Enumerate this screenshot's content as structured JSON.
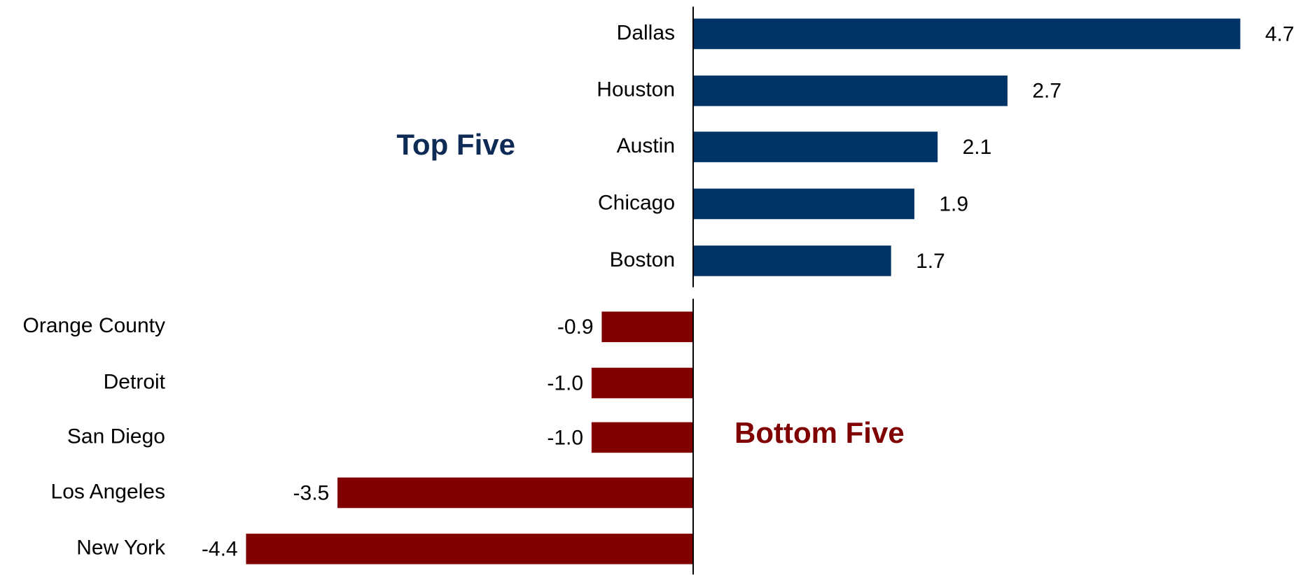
{
  "chart_data": [
    {
      "type": "bar",
      "orientation": "horizontal",
      "title": "Top Five",
      "categories": [
        "Dallas",
        "Houston",
        "Austin",
        "Chicago",
        "Boston"
      ],
      "values": [
        4.7,
        2.7,
        2.1,
        1.9,
        1.7
      ],
      "value_labels": [
        "4.7",
        "2.7",
        "2.1",
        "1.9",
        "1.7"
      ],
      "color": "#003366",
      "title_color": "#0d2b55"
    },
    {
      "type": "bar",
      "orientation": "horizontal",
      "title": "Bottom Five",
      "categories": [
        "Orange County",
        "Detroit",
        "San Diego",
        "Los Angeles",
        "New York"
      ],
      "values": [
        -0.9,
        -1.0,
        -1.0,
        -3.5,
        -4.4
      ],
      "value_labels": [
        "-0.9",
        "-1.0",
        "-1.0",
        "-3.5",
        "-4.4"
      ],
      "color": "#800000",
      "title_color": "#800000"
    }
  ]
}
